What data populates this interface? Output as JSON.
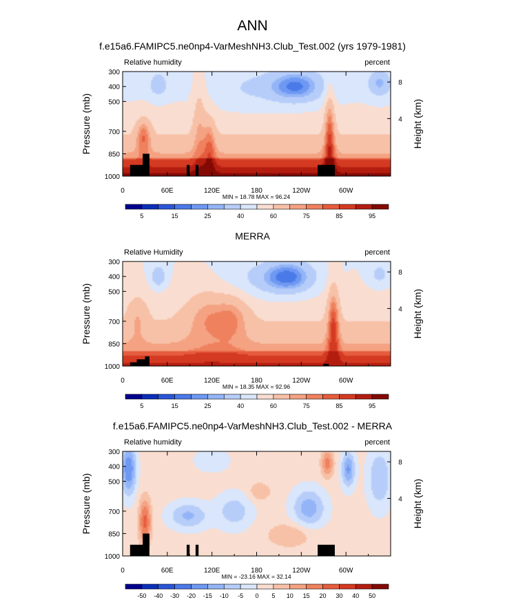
{
  "figure": {
    "title": "ANN"
  },
  "chart_data": [
    {
      "type": "heatmap",
      "title": "f.e15a6.FAMIPC5.ne0np4-VarMeshNH3.Club_Test.002 (yrs 1979-1981)",
      "left_string": "Relative humidity",
      "right_string": "percent",
      "ylabel": "Pressure (mb)",
      "ylabel_right": "Height (km)",
      "x_ticks": [
        "0",
        "60E",
        "120E",
        "180",
        "120W",
        "60W"
      ],
      "y_ticks": [
        "300",
        "400",
        "500",
        "700",
        "850",
        "1000"
      ],
      "y_ticks_right": [
        "8",
        "4"
      ],
      "ylim": [
        1000,
        300
      ],
      "min_max_text": "MIN = 18.78 MAX = 96.24",
      "colorbar_labels": [
        "5",
        "15",
        "25",
        "40",
        "60",
        "75",
        "85",
        "95"
      ],
      "colorbar_colors": [
        "#00008f",
        "#0a2fb8",
        "#2a56d6",
        "#4a79e8",
        "#6e98f2",
        "#93b5f7",
        "#b7cdf9",
        "#d9e6fb",
        "#f9ddd0",
        "#f7c1a8",
        "#f4a282",
        "#ef815e",
        "#e65c3e",
        "#d43a22",
        "#b31d10",
        "#830a04"
      ],
      "cmin": 18.78,
      "cmax": 96.24
    },
    {
      "type": "heatmap",
      "title": "MERRA",
      "left_string": "Relative Humidity",
      "right_string": "percent",
      "ylabel": "Pressure (mb)",
      "ylabel_right": "Height (km)",
      "x_ticks": [
        "0",
        "60E",
        "120E",
        "180",
        "120W",
        "60W"
      ],
      "y_ticks": [
        "300",
        "400",
        "500",
        "700",
        "850",
        "1000"
      ],
      "y_ticks_right": [
        "8",
        "4"
      ],
      "ylim": [
        1000,
        300
      ],
      "min_max_text": "MIN = 18.35 MAX = 92.96",
      "colorbar_labels": [
        "5",
        "15",
        "25",
        "40",
        "60",
        "75",
        "85",
        "95"
      ],
      "colorbar_colors": [
        "#00008f",
        "#0a2fb8",
        "#2a56d6",
        "#4a79e8",
        "#6e98f2",
        "#93b5f7",
        "#b7cdf9",
        "#d9e6fb",
        "#f9ddd0",
        "#f7c1a8",
        "#f4a282",
        "#ef815e",
        "#e65c3e",
        "#d43a22",
        "#b31d10",
        "#830a04"
      ],
      "cmin": 18.35,
      "cmax": 92.96
    },
    {
      "type": "heatmap",
      "title": "f.e15a6.FAMIPC5.ne0np4-VarMeshNH3.Club_Test.002 - MERRA",
      "left_string": "Relative humidity",
      "right_string": "percent",
      "ylabel": "Pressure (mb)",
      "ylabel_right": "Height (km)",
      "x_ticks": [
        "0",
        "60E",
        "120E",
        "180",
        "120W",
        "60W"
      ],
      "y_ticks": [
        "300",
        "400",
        "500",
        "700",
        "850",
        "1000"
      ],
      "y_ticks_right": [
        "8",
        "4"
      ],
      "ylim": [
        1000,
        300
      ],
      "min_max_text": "MIN = -23.16 MAX = 32.14",
      "colorbar_labels": [
        "-50",
        "-40",
        "-30",
        "-20",
        "-15",
        "-10",
        "-5",
        "0",
        "5",
        "10",
        "15",
        "20",
        "30",
        "40",
        "50"
      ],
      "colorbar_colors": [
        "#00008f",
        "#0a2fb8",
        "#2a56d6",
        "#4a79e8",
        "#6e98f2",
        "#93b5f7",
        "#b7cdf9",
        "#d9e6fb",
        "#f9ddd0",
        "#f7c1a8",
        "#f4a282",
        "#ef815e",
        "#e65c3e",
        "#d43a22",
        "#b31d10",
        "#830a04"
      ],
      "cmin": -23.16,
      "cmax": 32.14
    }
  ]
}
